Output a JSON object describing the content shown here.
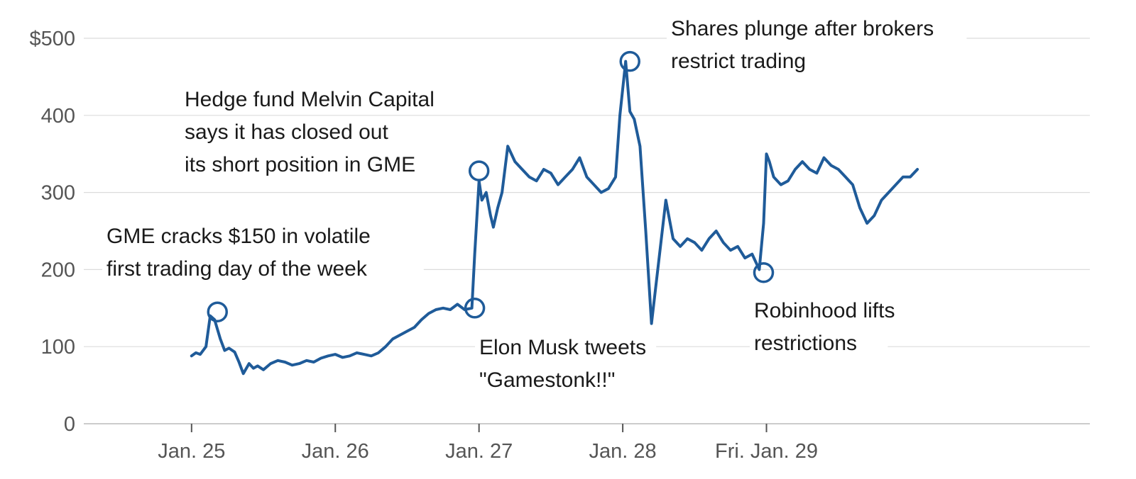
{
  "chart_data": {
    "type": "line",
    "title": "",
    "xlabel": "",
    "ylabel": "",
    "y_tick_labels": [
      "0",
      "100",
      "200",
      "300",
      "400",
      "$500"
    ],
    "y_ticks": [
      0,
      100,
      200,
      300,
      400,
      500
    ],
    "ylim": [
      0,
      500
    ],
    "x_tick_labels": [
      "Jan. 25",
      "Jan. 26",
      "Jan. 27",
      "Jan. 28",
      "Fri. Jan. 29"
    ],
    "x_ticks": [
      0,
      1,
      2,
      3,
      4
    ],
    "xlim": [
      -0.75,
      6.25
    ],
    "grid": true,
    "line_color": "#1f5b99",
    "series": [
      {
        "name": "",
        "x": [
          0.0,
          0.03,
          0.06,
          0.1,
          0.13,
          0.16,
          0.2,
          0.23,
          0.26,
          0.3,
          0.33,
          0.36,
          0.4,
          0.43,
          0.46,
          0.5,
          0.55,
          0.6,
          0.65,
          0.7,
          0.75,
          0.8,
          0.85,
          0.9,
          0.95,
          1.0,
          1.05,
          1.1,
          1.15,
          1.2,
          1.25,
          1.3,
          1.35,
          1.4,
          1.45,
          1.5,
          1.55,
          1.6,
          1.65,
          1.7,
          1.75,
          1.8,
          1.85,
          1.9,
          1.95,
          1.97,
          2.0,
          2.02,
          2.05,
          2.08,
          2.1,
          2.13,
          2.16,
          2.2,
          2.25,
          2.3,
          2.35,
          2.4,
          2.45,
          2.5,
          2.55,
          2.6,
          2.65,
          2.7,
          2.75,
          2.8,
          2.85,
          2.9,
          2.95,
          2.98,
          3.02,
          3.05,
          3.08,
          3.12,
          3.16,
          3.2,
          3.25,
          3.3,
          3.35,
          3.4,
          3.45,
          3.5,
          3.55,
          3.6,
          3.65,
          3.7,
          3.75,
          3.8,
          3.85,
          3.9,
          3.95,
          3.98,
          4.0,
          4.02,
          4.05,
          4.1,
          4.15,
          4.2,
          4.25,
          4.3,
          4.35,
          4.4,
          4.45,
          4.5,
          4.55,
          4.6,
          4.65,
          4.7,
          4.75,
          4.8,
          4.85,
          4.9,
          4.95,
          5.0,
          5.05
        ],
        "values": [
          88,
          92,
          90,
          100,
          140,
          135,
          110,
          95,
          98,
          93,
          80,
          65,
          78,
          72,
          75,
          70,
          78,
          82,
          80,
          76,
          78,
          82,
          80,
          85,
          88,
          90,
          86,
          88,
          92,
          90,
          88,
          92,
          100,
          110,
          115,
          120,
          125,
          135,
          143,
          148,
          150,
          148,
          155,
          148,
          150,
          220,
          315,
          290,
          300,
          270,
          255,
          280,
          300,
          360,
          340,
          330,
          320,
          315,
          330,
          325,
          310,
          320,
          330,
          345,
          320,
          310,
          300,
          305,
          320,
          400,
          470,
          405,
          395,
          360,
          250,
          130,
          210,
          290,
          240,
          230,
          240,
          235,
          225,
          240,
          250,
          235,
          225,
          230,
          215,
          220,
          200,
          260,
          350,
          340,
          320,
          310,
          315,
          330,
          340,
          330,
          325,
          345,
          335,
          330,
          320,
          310,
          280,
          260,
          270,
          290,
          300,
          310,
          320,
          320,
          330
        ]
      }
    ],
    "annotations": [
      {
        "lines": [
          "GME cracks $150 in volatile",
          "first trading day of the week"
        ],
        "x": 0.18,
        "y": 145
      },
      {
        "lines": [
          "Hedge fund Melvin Capital",
          "says it has closed out",
          "its short position in GME"
        ],
        "x": 2.0,
        "y": 328
      },
      {
        "lines": [
          "Elon Musk tweets",
          "\"Gamestonk!!\""
        ],
        "x": 1.97,
        "y": 150
      },
      {
        "lines": [
          "Shares plunge after brokers",
          "restrict trading"
        ],
        "x": 3.05,
        "y": 470
      },
      {
        "lines": [
          "Robinhood lifts",
          "restrictions"
        ],
        "x": 3.98,
        "y": 196
      }
    ]
  }
}
